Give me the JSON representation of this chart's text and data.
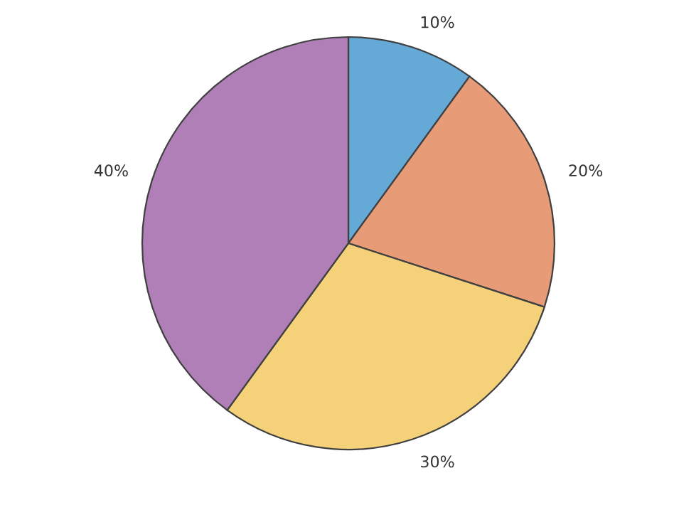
{
  "chart_data": {
    "type": "pie",
    "categories": [
      null,
      null,
      null,
      null
    ],
    "values": [
      10,
      20,
      30,
      40
    ],
    "colors": [
      "#65a9d7",
      "#e89b77",
      "#f5d17a",
      "#b07fb8"
    ],
    "value_labels": [
      "10%",
      "20%",
      "30%",
      "40%"
    ]
  }
}
